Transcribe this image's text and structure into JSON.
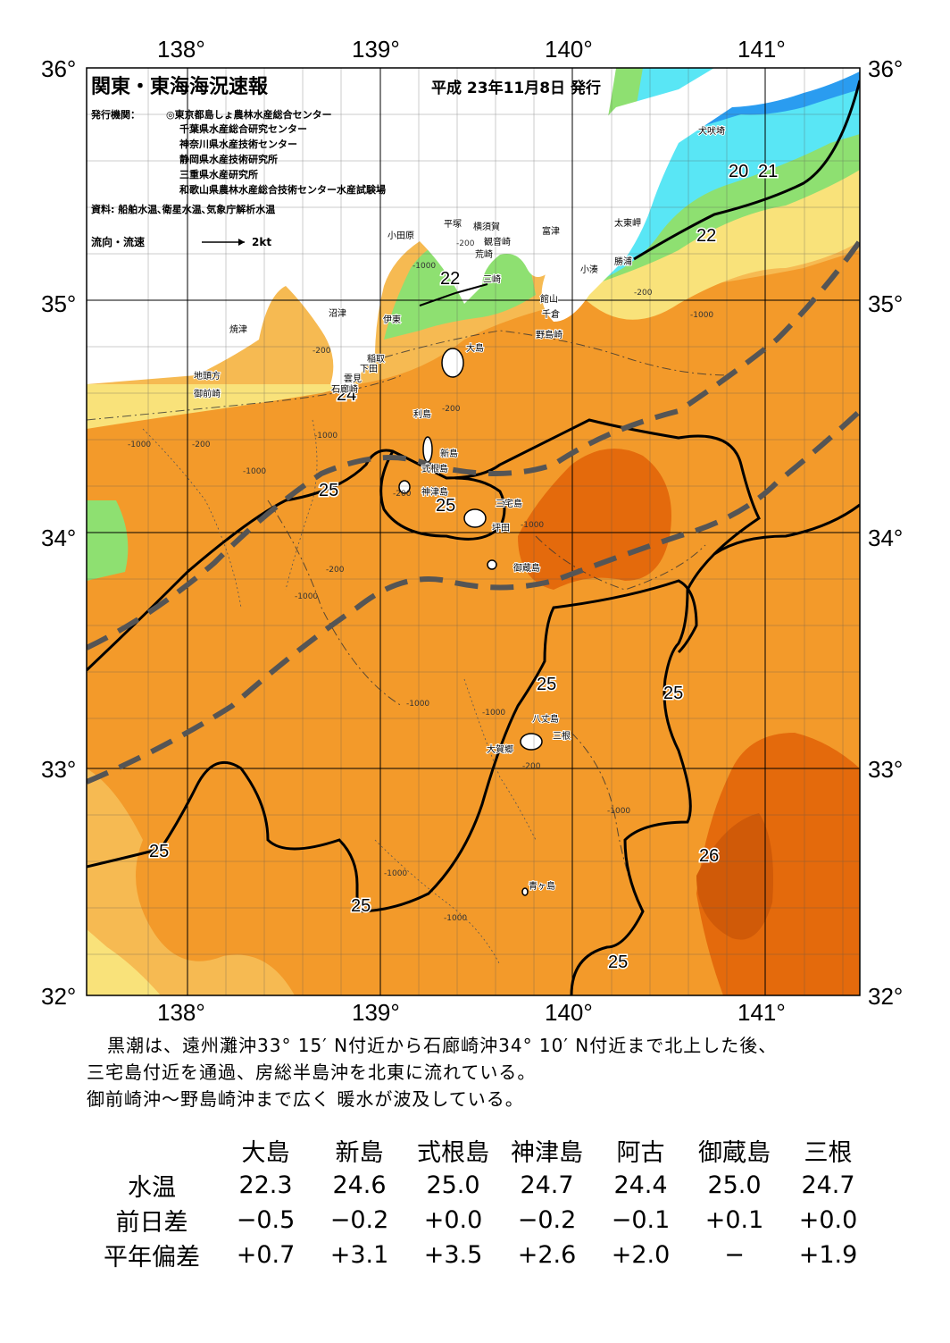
{
  "map": {
    "title": "関東・東海海況速報",
    "issue_date": "平成 23年11月8日 発行",
    "issuer_label": "発行機関：",
    "issuers": [
      "◎東京都島しょ農林水産総合センター",
      "千葉県水産総合研究センター",
      "神奈川県水産技術センター",
      "静岡県水産技術研究所",
      "三重県水産研究所",
      "和歌山県農林水産総合技術センター水産試験場"
    ],
    "data_sources": "資料: 船舶水温､衛星水温､気象庁解析水温",
    "current_legend_label": "流向・流速",
    "current_legend_scale": "2kt",
    "lon_labels": [
      "138°",
      "139°",
      "140°",
      "141°"
    ],
    "lat_labels": [
      "36°",
      "35°",
      "34°",
      "33°",
      "32°"
    ],
    "colors": {
      "deep_orange": "#e46a0c",
      "orange": "#f39a2a",
      "light_orange": "#f6ba52",
      "yellow": "#f9e27a",
      "green": "#8ee071",
      "cyan": "#59e6f5",
      "blue": "#2a9cf0",
      "land": "#ffffff",
      "kuroshio_axis": "#555555"
    },
    "isotherm_labels": [
      "20",
      "21",
      "22",
      "22",
      "24",
      "25",
      "25",
      "25",
      "25",
      "25",
      "25",
      "26",
      "25"
    ],
    "place_names": [
      "犬吠埼",
      "太東岬",
      "勝浦",
      "小湊",
      "富津",
      "横須賀",
      "観音崎",
      "平塚",
      "小田原",
      "荒崎",
      "三崎",
      "館山",
      "千倉",
      "野島崎",
      "沼津",
      "伊東",
      "焼津",
      "稲取",
      "下田",
      "雲見",
      "石廊崎",
      "地頭方",
      "御前崎",
      "大島",
      "利島",
      "新島",
      "式根島",
      "神津島",
      "三宅島",
      "坪田",
      "御蔵島",
      "八丈島",
      "三根",
      "大賀郷",
      "青ヶ島"
    ],
    "depth_labels": [
      "-200",
      "-1000"
    ]
  },
  "summary": [
    "黒潮は、遠州灘沖33° 15′ N付近から石廊崎沖34° 10′ N付近まで北上した後、",
    "三宅島付近を通過、房総半島沖を北東に流れている。",
    "御前崎沖～野島崎沖まで広く 暖水が波及している。"
  ],
  "table": {
    "stations": [
      "大島",
      "新島",
      "式根島",
      "神津島",
      "阿古",
      "御蔵島",
      "三根"
    ],
    "rows": [
      {
        "label": "水温",
        "values": [
          "22.3",
          "24.6",
          "25.0",
          "24.7",
          "24.4",
          "25.0",
          "24.7"
        ]
      },
      {
        "label": "前日差",
        "values": [
          "−0.5",
          "−0.2",
          "+0.0",
          "−0.2",
          "−0.1",
          "+0.1",
          "+0.0"
        ]
      },
      {
        "label": "平年偏差",
        "values": [
          "+0.7",
          "+3.1",
          "+3.5",
          "+2.6",
          "+2.0",
          "−",
          "+1.9"
        ]
      }
    ]
  }
}
